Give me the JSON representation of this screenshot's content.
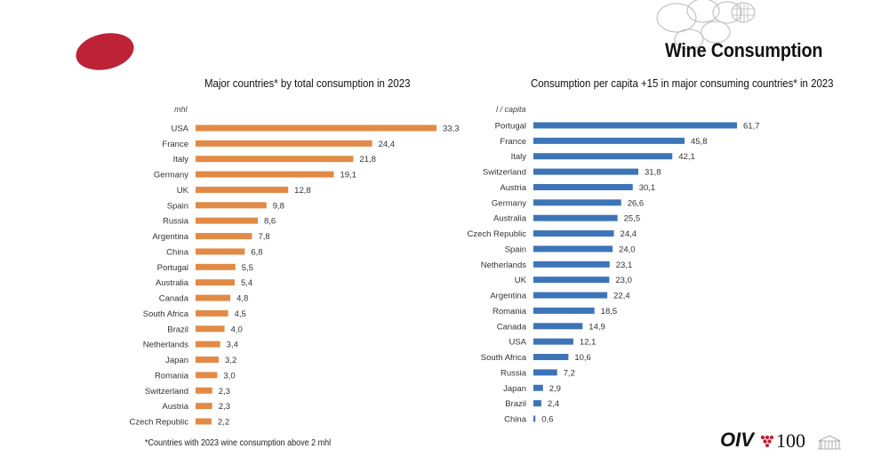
{
  "header": {
    "title": "Wine Consumption"
  },
  "colors": {
    "left_bar": "#E28A45",
    "right_bar": "#3D74B8",
    "blob": "#BE2236"
  },
  "footnote": "*Countries with 2023 wine consumption above 2 mhl",
  "logo": {
    "text": "OIV",
    "number": "100"
  },
  "chart_data": [
    {
      "type": "bar",
      "orientation": "horizontal",
      "title": "Major countries* by total consumption in 2023",
      "unit": "mhl",
      "categories": [
        "USA",
        "France",
        "Italy",
        "Germany",
        "UK",
        "Spain",
        "Russia",
        "Argentina",
        "China",
        "Portugal",
        "Australia",
        "Canada",
        "South Africa",
        "Brazil",
        "Netherlands",
        "Japan",
        "Romania",
        "Switzerland",
        "Austria",
        "Czech Republic"
      ],
      "values": [
        33.3,
        24.4,
        21.8,
        19.1,
        12.8,
        9.8,
        8.6,
        7.8,
        6.8,
        5.5,
        5.4,
        4.8,
        4.5,
        4.0,
        3.4,
        3.2,
        3.0,
        2.3,
        2.3,
        2.2
      ],
      "labels": [
        "33,3",
        "24,4",
        "21,8",
        "19,1",
        "12,8",
        "9,8",
        "8,6",
        "7,8",
        "6,8",
        "5,5",
        "5,4",
        "4,8",
        "4,5",
        "4,0",
        "3,4",
        "3,2",
        "3,0",
        "2,3",
        "2,3",
        "2,2"
      ],
      "xlim": [
        0,
        33.3
      ]
    },
    {
      "type": "bar",
      "orientation": "horizontal",
      "title": "Consumption per capita +15 in major consuming countries* in 2023",
      "unit": "l / capita",
      "categories": [
        "Portugal",
        "France",
        "Italy",
        "Switzerland",
        "Austria",
        "Germany",
        "Australia",
        "Czech Republic",
        "Spain",
        "Netherlands",
        "UK",
        "Argentina",
        "Romania",
        "Canada",
        "USA",
        "South Africa",
        "Russia",
        "Japan",
        "Brazil",
        "China"
      ],
      "values": [
        61.7,
        45.8,
        42.1,
        31.8,
        30.1,
        26.6,
        25.5,
        24.4,
        24.0,
        23.1,
        23.0,
        22.4,
        18.5,
        14.9,
        12.1,
        10.6,
        7.2,
        2.9,
        2.4,
        0.6
      ],
      "labels": [
        "61,7",
        "45,8",
        "42,1",
        "31,8",
        "30,1",
        "26,6",
        "25,5",
        "24,4",
        "24,0",
        "23,1",
        "23,0",
        "22,4",
        "18,5",
        "14,9",
        "12,1",
        "10,6",
        "7,2",
        "2,9",
        "2,4",
        "0,6"
      ],
      "xlim": [
        0,
        61.7
      ]
    }
  ]
}
